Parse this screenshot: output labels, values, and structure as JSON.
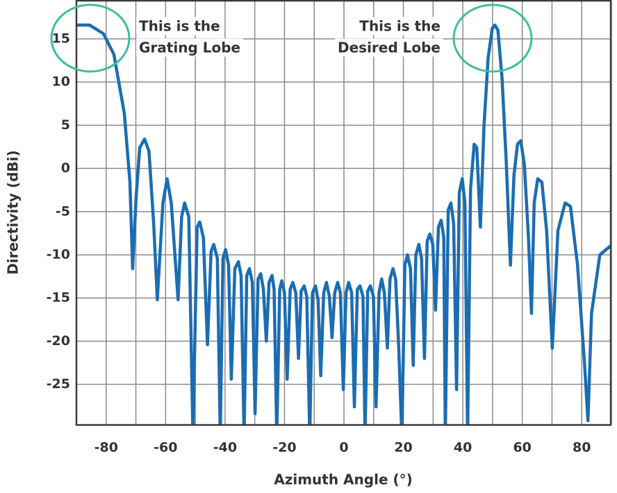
{
  "chart_data": {
    "type": "line",
    "ylabel": "Directivity (dBi)",
    "xlabel": "Azimuth Angle (°)",
    "xlim": [
      -90,
      90
    ],
    "ylim": [
      -29.7,
      19.5
    ],
    "xticks": [
      -80,
      -60,
      -40,
      -20,
      0,
      20,
      40,
      60,
      80
    ],
    "yticks": [
      15,
      10,
      5,
      0,
      -5,
      -10,
      -15,
      -20,
      -25
    ],
    "xgrid": [
      -90,
      -80,
      -70,
      -60,
      -50,
      -40,
      -30,
      -20,
      -10,
      0,
      10,
      20,
      30,
      40,
      50,
      60,
      70,
      80,
      90
    ],
    "grid": true,
    "annotations": [
      {
        "lines": [
          "This is the",
          "Grating Lobe"
        ]
      },
      {
        "lines": [
          "This is the",
          "Desired Lobe"
        ]
      }
    ],
    "x": [
      -89.9,
      -85.6,
      -80.9,
      -77.4,
      -73.9,
      -72.0,
      -71.1,
      -69.9,
      -68.7,
      -67.1,
      -65.6,
      -64.0,
      -62.8,
      -60.9,
      -59.5,
      -58.1,
      -55.8,
      -54.6,
      -53.6,
      -52.2,
      -50.8,
      -49.4,
      -48.5,
      -47.3,
      -45.9,
      -44.7,
      -43.8,
      -42.6,
      -41.6,
      -40.7,
      -39.8,
      -38.8,
      -37.9,
      -36.7,
      -35.5,
      -34.6,
      -33.6,
      -32.7,
      -31.8,
      -30.8,
      -29.9,
      -28.9,
      -28.0,
      -27.1,
      -26.1,
      -25.2,
      -24.2,
      -23.5,
      -22.6,
      -21.6,
      -20.9,
      -20.0,
      -19.1,
      -18.1,
      -17.2,
      -16.2,
      -15.3,
      -14.4,
      -13.4,
      -12.5,
      -11.5,
      -10.6,
      -9.6,
      -8.7,
      -7.8,
      -6.8,
      -5.9,
      -4.9,
      -4.0,
      -3.1,
      -2.1,
      -1.2,
      -0.2,
      0.7,
      1.6,
      2.6,
      3.5,
      4.5,
      5.4,
      6.4,
      7.1,
      8.0,
      8.9,
      9.9,
      10.8,
      11.8,
      12.7,
      13.6,
      14.6,
      15.5,
      16.5,
      17.4,
      18.4,
      19.5,
      20.5,
      21.4,
      22.4,
      23.3,
      24.2,
      25.2,
      26.1,
      27.1,
      28.0,
      28.9,
      29.9,
      30.8,
      31.8,
      32.7,
      33.6,
      34.1,
      35.1,
      36.0,
      36.9,
      37.9,
      38.8,
      39.8,
      40.7,
      41.6,
      42.6,
      43.8,
      44.7,
      45.9,
      47.1,
      48.5,
      49.9,
      50.8,
      51.8,
      53.2,
      54.6,
      56.0,
      57.2,
      58.4,
      59.5,
      60.7,
      62.1,
      63.1,
      64.0,
      65.2,
      66.6,
      68.2,
      70.1,
      72.0,
      74.4,
      76.2,
      78.6,
      80.9,
      82.1,
      83.3,
      86.1,
      89.6
    ],
    "series": [
      {
        "color": "#1b6db3",
        "values": [
          16.6,
          16.6,
          15.6,
          13.2,
          6.4,
          -1.6,
          -11.6,
          -3.2,
          2.4,
          3.4,
          2.0,
          -6.4,
          -15.2,
          -4.0,
          -1.2,
          -4.0,
          -15.2,
          -5.6,
          -4.0,
          -5.6,
          -31,
          -6.8,
          -6.2,
          -8.0,
          -20.4,
          -9.6,
          -8.8,
          -10.4,
          -31,
          -10.4,
          -9.4,
          -11.2,
          -24.4,
          -11.6,
          -10.8,
          -12.4,
          -31,
          -12.4,
          -11.6,
          -13.2,
          -28.4,
          -12.8,
          -12.2,
          -14.0,
          -20.0,
          -13.2,
          -12.4,
          -14.0,
          -31,
          -14.0,
          -13.0,
          -14.4,
          -24.4,
          -14.0,
          -13.2,
          -14.4,
          -22.0,
          -14.2,
          -13.6,
          -14.8,
          -31,
          -14.4,
          -13.6,
          -15.2,
          -24.0,
          -14.4,
          -13.2,
          -14.8,
          -19.6,
          -14.4,
          -13.2,
          -14.4,
          -25.6,
          -14.4,
          -13.2,
          -14.4,
          -27.6,
          -14.0,
          -13.6,
          -14.8,
          -31,
          -14.2,
          -13.6,
          -14.8,
          -27.6,
          -14.4,
          -12.8,
          -14.4,
          -20.8,
          -12.8,
          -11.6,
          -12.8,
          -20.4,
          -31,
          -11.2,
          -10.0,
          -11.6,
          -22.8,
          -10.0,
          -8.8,
          -10.4,
          -22.0,
          -8.4,
          -7.6,
          -8.8,
          -16.4,
          -6.8,
          -6.0,
          -8.0,
          -31,
          -4.8,
          -4.0,
          -6.4,
          -25.6,
          -2.8,
          -1.2,
          -4.0,
          -31,
          -2.4,
          2.8,
          2.4,
          -6.8,
          4.8,
          12.8,
          16.2,
          16.6,
          16.0,
          10.4,
          0.8,
          -11.2,
          -0.8,
          2.8,
          3.2,
          0.4,
          -8.0,
          -16.8,
          -4.0,
          -1.2,
          -1.6,
          -7.2,
          -20.8,
          -7.2,
          -4.0,
          -4.4,
          -11.2,
          -22.4,
          -29.2,
          -16.8,
          -10.0,
          -9.0
        ]
      }
    ]
  }
}
